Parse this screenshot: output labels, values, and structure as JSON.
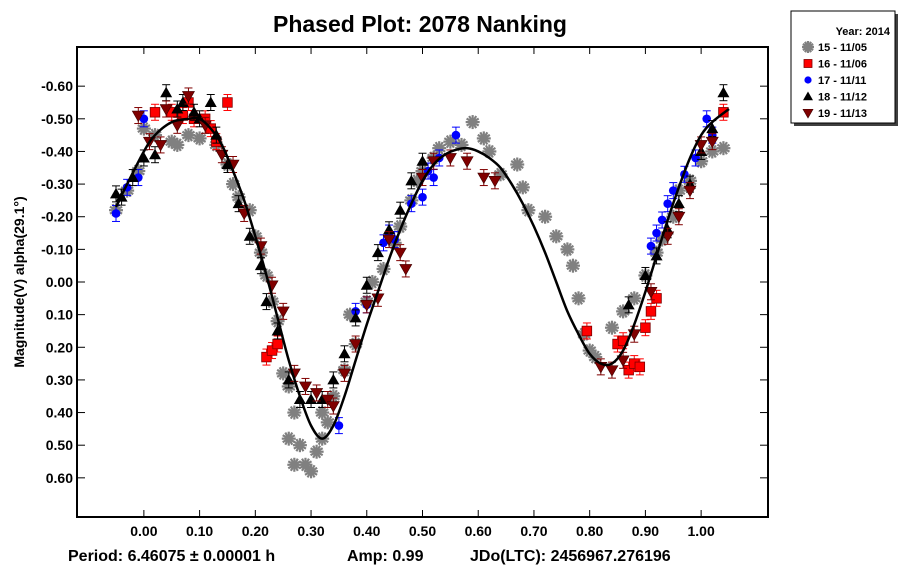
{
  "chart_data": {
    "type": "scatter",
    "title": "Phased Plot: 2078 Nanking",
    "xlabel": "",
    "ylabel": "Magnitude(V) alpha(29.1°)",
    "xlim": [
      -0.12,
      1.12
    ],
    "ylim": [
      0.72,
      -0.72
    ],
    "y_inverted": true,
    "grid": false,
    "x_ticks": [
      "0.00",
      "0.10",
      "0.20",
      "0.30",
      "0.40",
      "0.50",
      "0.60",
      "0.70",
      "0.80",
      "0.90",
      "1.00"
    ],
    "x_tick_values": [
      0.0,
      0.1,
      0.2,
      0.3,
      0.4,
      0.5,
      0.6,
      0.7,
      0.8,
      0.9,
      1.0
    ],
    "y_ticks": [
      "-0.60",
      "-0.50",
      "-0.40",
      "-0.30",
      "-0.20",
      "-0.10",
      "0.00",
      "0.10",
      "0.20",
      "0.30",
      "0.40",
      "0.50",
      "0.60"
    ],
    "y_tick_values": [
      -0.6,
      -0.5,
      -0.4,
      -0.3,
      -0.2,
      -0.1,
      0.0,
      0.1,
      0.2,
      0.3,
      0.4,
      0.5,
      0.6
    ],
    "legend": {
      "placement": "top-right",
      "title": "Year: 2014",
      "entries": [
        {
          "label": "15 - 11/05",
          "marker": "asterisk",
          "color": "#808080"
        },
        {
          "label": "16 - 11/06",
          "marker": "square",
          "color": "#ff0000"
        },
        {
          "label": "17 - 11/11",
          "marker": "circle",
          "color": "#0000ff"
        },
        {
          "label": "18 - 11/12",
          "marker": "triangle-up",
          "color": "#000000"
        },
        {
          "label": "19 - 11/13",
          "marker": "triangle-down",
          "color": "#800000"
        }
      ]
    },
    "fit_curve": {
      "name": "Fourier fit",
      "color": "#000000",
      "x": [
        -0.05,
        -0.03,
        0.0,
        0.02,
        0.05,
        0.08,
        0.1,
        0.12,
        0.14,
        0.16,
        0.18,
        0.2,
        0.22,
        0.24,
        0.26,
        0.28,
        0.3,
        0.32,
        0.34,
        0.36,
        0.38,
        0.4,
        0.42,
        0.44,
        0.46,
        0.48,
        0.5,
        0.52,
        0.54,
        0.56,
        0.58,
        0.6,
        0.62,
        0.64,
        0.66,
        0.68,
        0.7,
        0.72,
        0.74,
        0.76,
        0.78,
        0.8,
        0.82,
        0.84,
        0.86,
        0.88,
        0.9,
        0.92,
        0.94,
        0.96,
        0.98,
        1.0,
        1.02,
        1.05
      ],
      "y": [
        -0.23,
        -0.3,
        -0.4,
        -0.45,
        -0.49,
        -0.5,
        -0.5,
        -0.47,
        -0.42,
        -0.34,
        -0.25,
        -0.14,
        -0.02,
        0.11,
        0.24,
        0.35,
        0.44,
        0.48,
        0.44,
        0.35,
        0.24,
        0.13,
        0.03,
        -0.07,
        -0.16,
        -0.24,
        -0.31,
        -0.36,
        -0.39,
        -0.405,
        -0.41,
        -0.4,
        -0.38,
        -0.35,
        -0.3,
        -0.24,
        -0.17,
        -0.09,
        0.0,
        0.09,
        0.16,
        0.22,
        0.25,
        0.25,
        0.21,
        0.13,
        0.03,
        -0.08,
        -0.19,
        -0.29,
        -0.38,
        -0.45,
        -0.49,
        -0.53
      ]
    },
    "series": [
      {
        "name": "15 - 11/05",
        "marker": "asterisk",
        "color": "#808080",
        "points": [
          [
            -0.05,
            -0.22
          ],
          [
            -0.03,
            -0.28
          ],
          [
            -0.01,
            -0.34
          ],
          [
            0.0,
            -0.47
          ],
          [
            0.02,
            -0.45
          ],
          [
            0.05,
            -0.43
          ],
          [
            0.06,
            -0.42
          ],
          [
            0.08,
            -0.45
          ],
          [
            0.1,
            -0.44
          ],
          [
            0.13,
            -0.42
          ],
          [
            0.15,
            -0.36
          ],
          [
            0.16,
            -0.3
          ],
          [
            0.17,
            -0.26
          ],
          [
            0.19,
            -0.22
          ],
          [
            0.2,
            -0.14
          ],
          [
            0.21,
            -0.09
          ],
          [
            0.22,
            -0.02
          ],
          [
            0.23,
            0.06
          ],
          [
            0.24,
            0.12
          ],
          [
            0.25,
            0.28
          ],
          [
            0.26,
            0.32
          ],
          [
            0.27,
            0.4
          ],
          [
            0.26,
            0.48
          ],
          [
            0.28,
            0.5
          ],
          [
            0.27,
            0.56
          ],
          [
            0.29,
            0.56
          ],
          [
            0.3,
            0.58
          ],
          [
            0.31,
            0.52
          ],
          [
            0.32,
            0.48
          ],
          [
            0.33,
            0.43
          ],
          [
            0.32,
            0.4
          ],
          [
            0.34,
            0.35
          ],
          [
            0.36,
            0.27
          ],
          [
            0.38,
            0.19
          ],
          [
            0.37,
            0.1
          ],
          [
            0.4,
            0.06
          ],
          [
            0.41,
            0.0
          ],
          [
            0.43,
            -0.04
          ],
          [
            0.45,
            -0.12
          ],
          [
            0.46,
            -0.17
          ],
          [
            0.48,
            -0.25
          ],
          [
            0.49,
            -0.31
          ],
          [
            0.5,
            -0.34
          ],
          [
            0.52,
            -0.38
          ],
          [
            0.53,
            -0.41
          ],
          [
            0.55,
            -0.43
          ],
          [
            0.57,
            -0.42
          ],
          [
            0.59,
            -0.49
          ],
          [
            0.61,
            -0.44
          ],
          [
            0.62,
            -0.4
          ],
          [
            0.64,
            -0.33
          ],
          [
            0.67,
            -0.36
          ],
          [
            0.68,
            -0.29
          ],
          [
            0.69,
            -0.22
          ],
          [
            0.72,
            -0.2
          ],
          [
            0.74,
            -0.14
          ],
          [
            0.76,
            -0.1
          ],
          [
            0.77,
            -0.05
          ],
          [
            0.78,
            0.05
          ],
          [
            0.79,
            0.16
          ],
          [
            0.8,
            0.21
          ],
          [
            0.81,
            0.23
          ],
          [
            0.84,
            0.14
          ],
          [
            0.86,
            0.09
          ],
          [
            0.88,
            0.05
          ],
          [
            0.9,
            -0.02
          ],
          [
            0.92,
            -0.09
          ],
          [
            0.93,
            -0.13
          ],
          [
            0.95,
            -0.2
          ],
          [
            0.96,
            -0.28
          ],
          [
            0.98,
            -0.31
          ],
          [
            1.0,
            -0.37
          ],
          [
            1.02,
            -0.4
          ],
          [
            1.04,
            -0.41
          ]
        ]
      },
      {
        "name": "16 - 11/06",
        "marker": "square",
        "color": "#ff0000",
        "points": [
          [
            0.02,
            -0.52
          ],
          [
            0.05,
            -0.52
          ],
          [
            0.07,
            -0.51
          ],
          [
            0.08,
            -0.55
          ],
          [
            0.09,
            -0.5
          ],
          [
            0.11,
            -0.5
          ],
          [
            0.12,
            -0.47
          ],
          [
            0.13,
            -0.43
          ],
          [
            0.15,
            -0.55
          ],
          [
            0.22,
            0.23
          ],
          [
            0.23,
            0.21
          ],
          [
            0.24,
            0.19
          ],
          [
            0.795,
            0.15
          ],
          [
            0.85,
            0.19
          ],
          [
            0.86,
            0.18
          ],
          [
            0.87,
            0.27
          ],
          [
            0.88,
            0.25
          ],
          [
            0.89,
            0.26
          ],
          [
            0.9,
            0.14
          ],
          [
            0.91,
            0.09
          ],
          [
            0.92,
            0.05
          ],
          [
            1.04,
            -0.52
          ]
        ]
      },
      {
        "name": "17 - 11/11",
        "marker": "circle",
        "color": "#0000ff",
        "points": [
          [
            -0.05,
            -0.21
          ],
          [
            -0.03,
            -0.29
          ],
          [
            -0.01,
            -0.32
          ],
          [
            0.0,
            -0.5
          ],
          [
            0.35,
            0.44
          ],
          [
            0.38,
            0.09
          ],
          [
            0.4,
            0.07
          ],
          [
            0.43,
            -0.12
          ],
          [
            0.44,
            -0.15
          ],
          [
            0.45,
            -0.13
          ],
          [
            0.48,
            -0.24
          ],
          [
            0.5,
            -0.26
          ],
          [
            0.51,
            -0.34
          ],
          [
            0.52,
            -0.32
          ],
          [
            0.53,
            -0.38
          ],
          [
            0.56,
            -0.45
          ],
          [
            0.91,
            -0.11
          ],
          [
            0.92,
            -0.15
          ],
          [
            0.93,
            -0.19
          ],
          [
            0.94,
            -0.24
          ],
          [
            0.95,
            -0.28
          ],
          [
            0.97,
            -0.33
          ],
          [
            0.99,
            -0.38
          ],
          [
            1.01,
            -0.5
          ],
          [
            1.02,
            -0.45
          ]
        ]
      },
      {
        "name": "18 - 11/12",
        "marker": "triangle-up",
        "color": "#000000",
        "points": [
          [
            -0.05,
            -0.27
          ],
          [
            -0.04,
            -0.26
          ],
          [
            -0.02,
            -0.32
          ],
          [
            0.0,
            -0.38
          ],
          [
            0.02,
            -0.39
          ],
          [
            0.04,
            -0.58
          ],
          [
            0.06,
            -0.53
          ],
          [
            0.07,
            -0.55
          ],
          [
            0.09,
            -0.52
          ],
          [
            0.1,
            -0.5
          ],
          [
            0.12,
            -0.55
          ],
          [
            0.13,
            -0.45
          ],
          [
            0.15,
            -0.36
          ],
          [
            0.17,
            -0.24
          ],
          [
            0.19,
            -0.14
          ],
          [
            0.21,
            -0.05
          ],
          [
            0.22,
            0.06
          ],
          [
            0.24,
            0.15
          ],
          [
            0.26,
            0.3
          ],
          [
            0.28,
            0.36
          ],
          [
            0.3,
            0.36
          ],
          [
            0.32,
            0.36
          ],
          [
            0.34,
            0.3
          ],
          [
            0.36,
            0.22
          ],
          [
            0.38,
            0.11
          ],
          [
            0.4,
            0.01
          ],
          [
            0.42,
            -0.09
          ],
          [
            0.44,
            -0.16
          ],
          [
            0.46,
            -0.22
          ],
          [
            0.48,
            -0.31
          ],
          [
            0.5,
            -0.37
          ],
          [
            0.87,
            0.07
          ],
          [
            0.9,
            -0.02
          ],
          [
            0.92,
            -0.08
          ],
          [
            0.94,
            -0.16
          ],
          [
            0.96,
            -0.24
          ],
          [
            0.98,
            -0.3
          ],
          [
            1.0,
            -0.4
          ],
          [
            1.02,
            -0.47
          ],
          [
            1.04,
            -0.58
          ]
        ]
      },
      {
        "name": "19 - 11/13",
        "marker": "triangle-down",
        "color": "#800000",
        "points": [
          [
            -0.01,
            -0.51
          ],
          [
            0.01,
            -0.43
          ],
          [
            0.03,
            -0.42
          ],
          [
            0.04,
            -0.53
          ],
          [
            0.06,
            -0.48
          ],
          [
            0.08,
            -0.57
          ],
          [
            0.11,
            -0.48
          ],
          [
            0.14,
            -0.39
          ],
          [
            0.16,
            -0.36
          ],
          [
            0.18,
            -0.21
          ],
          [
            0.21,
            -0.11
          ],
          [
            0.23,
            0.01
          ],
          [
            0.25,
            0.09
          ],
          [
            0.27,
            0.28
          ],
          [
            0.29,
            0.32
          ],
          [
            0.31,
            0.34
          ],
          [
            0.33,
            0.36
          ],
          [
            0.34,
            0.38
          ],
          [
            0.36,
            0.28
          ],
          [
            0.38,
            0.19
          ],
          [
            0.4,
            0.07
          ],
          [
            0.42,
            0.05
          ],
          [
            0.44,
            -0.13
          ],
          [
            0.46,
            -0.09
          ],
          [
            0.47,
            -0.04
          ],
          [
            0.5,
            -0.32
          ],
          [
            0.52,
            -0.37
          ],
          [
            0.55,
            -0.38
          ],
          [
            0.58,
            -0.37
          ],
          [
            0.61,
            -0.32
          ],
          [
            0.63,
            -0.31
          ],
          [
            0.82,
            0.26
          ],
          [
            0.84,
            0.27
          ],
          [
            0.86,
            0.24
          ],
          [
            0.88,
            0.16
          ],
          [
            0.91,
            0.03
          ],
          [
            0.94,
            -0.14
          ],
          [
            0.96,
            -0.2
          ],
          [
            0.98,
            -0.28
          ],
          [
            1.0,
            -0.42
          ],
          [
            1.02,
            -0.43
          ]
        ]
      }
    ],
    "annotations": {
      "period": "Period: 6.46075 ± 0.00001 h",
      "amp": "Amp: 0.99",
      "jdo": "JDo(LTC): 2456967.276196"
    }
  }
}
